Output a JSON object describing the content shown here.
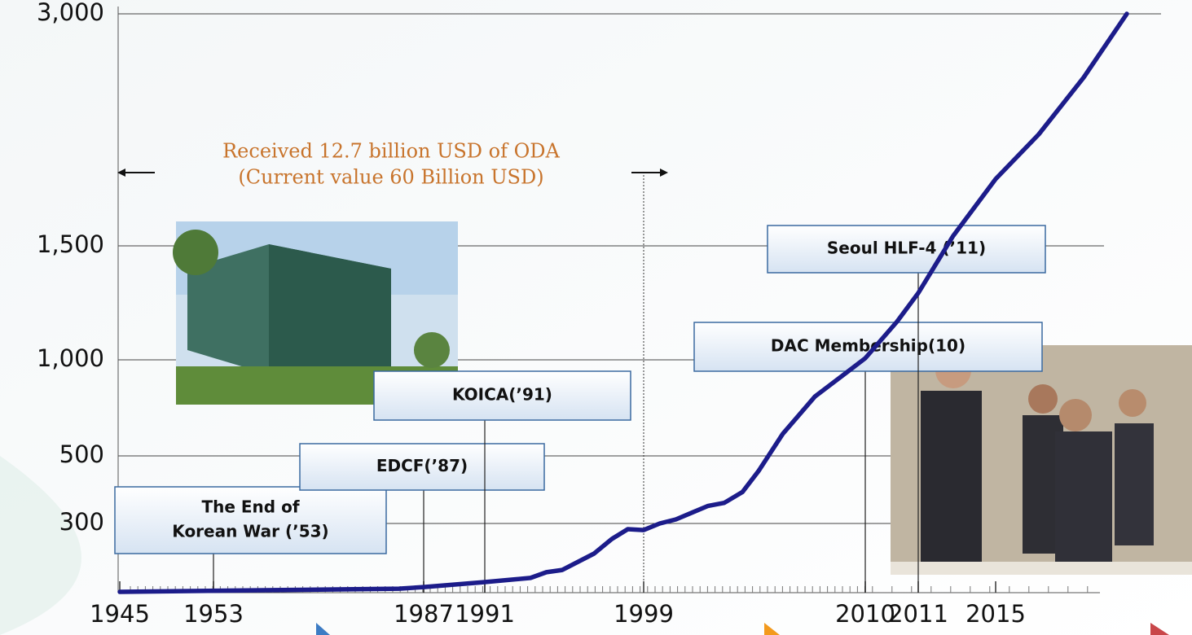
{
  "chart_data": {
    "type": "line",
    "x": [
      1945,
      1983,
      1987,
      1991,
      1993.3,
      1994.1,
      1994.9,
      1996.5,
      1997.4,
      1998.2,
      1999,
      1999.8,
      2000.6,
      2001.4,
      2002.2,
      2003,
      2003.9,
      2004.7,
      2005.9,
      2007.5,
      2009.1,
      2010,
      2010.6,
      2011,
      2012.8,
      2015,
      2017.3,
      2019.7,
      2022
    ],
    "series": [
      {
        "color": "#1c1c8a",
        "values": [
          0,
          14,
          21,
          43,
          61,
          86,
          96,
          168,
          232,
          275,
          271,
          300,
          312,
          332,
          352,
          361,
          393,
          455,
          614,
          809,
          936,
          1007,
          1168,
          1293,
          1563,
          1932,
          2221,
          2589,
          3000
        ]
      }
    ],
    "xlim": [
      1945,
      2022
    ],
    "xticks": [
      1945,
      1953,
      1987,
      1991,
      1999,
      2010,
      2011,
      2015
    ],
    "ylim": [
      0,
      3000
    ],
    "yticks": [
      300,
      500,
      {
        "value": 1000,
        "label": "1,000"
      },
      {
        "value": 1500,
        "label": "1,500"
      },
      {
        "value": 3000,
        "label": "3,000"
      }
    ],
    "grid": true,
    "annotations": [
      {
        "x": 1953,
        "lines": [
          "The End of",
          "Korean War (’53)"
        ]
      },
      {
        "x": 1987,
        "lines": [
          "EDCF(’87)"
        ]
      },
      {
        "x": 1991,
        "lines": [
          "KOICA(’91)"
        ]
      },
      {
        "x": 2010,
        "lines": [
          "DAC Membership(10)"
        ]
      },
      {
        "x": 2011,
        "lines": [
          "Seoul HLF-4 (’11)"
        ]
      }
    ],
    "oda_note": {
      "x": 1999,
      "lines": [
        "Received 12.7 billion USD of ODA",
        "(Current value 60 Billion USD)"
      ]
    }
  }
}
